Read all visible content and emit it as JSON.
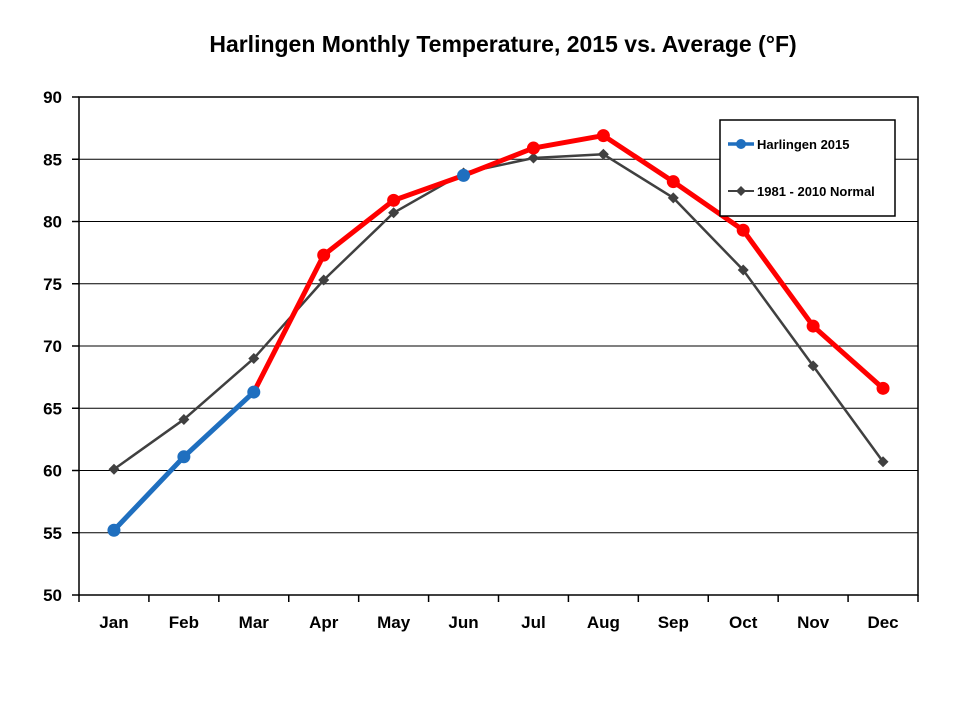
{
  "chart_data": {
    "type": "line",
    "title": "Harlingen Monthly Temperature, 2015 vs. Average (°F)",
    "xlabel": "",
    "ylabel": "",
    "categories": [
      "Jan",
      "Feb",
      "Mar",
      "Apr",
      "May",
      "Jun",
      "Jul",
      "Aug",
      "Sep",
      "Oct",
      "Nov",
      "Dec"
    ],
    "ylim": [
      50,
      90
    ],
    "yticks": [
      50,
      55,
      60,
      65,
      70,
      75,
      80,
      85,
      90
    ],
    "grid": "horizontal",
    "legend_position": "top-right",
    "series": [
      {
        "name": "Harlingen 2015",
        "values": [
          55.2,
          61.1,
          66.3,
          77.3,
          81.7,
          83.7,
          85.9,
          86.9,
          83.2,
          79.3,
          71.6,
          66.6
        ],
        "color": "#1f6fbf",
        "marker": "circle",
        "above_normal_color": "#ff0000"
      },
      {
        "name": "1981 - 2010 Normal",
        "values": [
          60.1,
          64.1,
          69.0,
          75.3,
          80.7,
          83.9,
          85.1,
          85.4,
          81.9,
          76.1,
          68.4,
          60.7
        ],
        "color": "#404040",
        "marker": "diamond"
      }
    ]
  }
}
